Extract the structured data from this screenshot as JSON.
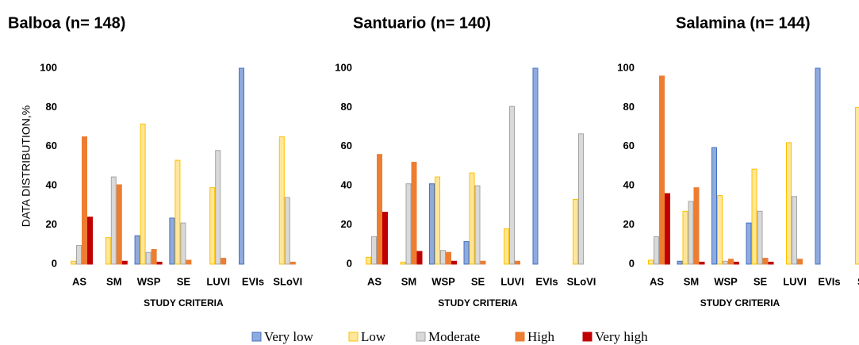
{
  "chart_data": [
    {
      "type": "bar",
      "title": "Balboa (n= 148)",
      "y_label": "DATA DISTRIBUTION,%",
      "x_label": "STUDY CRITERIA",
      "categories": [
        "AS",
        "SM",
        "WSP",
        "SE",
        "LUVI",
        "EVIs",
        "SLoVI"
      ],
      "ylim": [
        0,
        100
      ],
      "yticks": [
        0,
        20,
        40,
        60,
        80,
        100
      ],
      "series": [
        {
          "name": "Very low",
          "color": "#8faadc",
          "edgecolor": "#4472c4",
          "values": [
            0,
            0,
            14.5,
            23.5,
            0,
            100,
            0
          ]
        },
        {
          "name": "Low",
          "color": "#ffe699",
          "edgecolor": "#ffc000",
          "values": [
            1.5,
            13.5,
            71.5,
            53,
            39,
            0,
            65
          ]
        },
        {
          "name": "Moderate",
          "color": "#d9d9d9",
          "edgecolor": "#a5a5a5",
          "values": [
            9.5,
            44.5,
            6,
            21,
            58,
            0,
            34
          ]
        },
        {
          "name": "High",
          "color": "#ed7d31",
          "edgecolor": "#ed7d31",
          "values": [
            65,
            40.5,
            7.5,
            2,
            3,
            0,
            1
          ]
        },
        {
          "name": "Very high",
          "color": "#c00000",
          "edgecolor": "#c00000",
          "values": [
            24,
            1.5,
            1,
            0,
            0,
            0,
            0
          ]
        }
      ]
    },
    {
      "type": "bar",
      "title": "Santuario (n= 140)",
      "x_label": "STUDY CRITERIA",
      "categories": [
        "AS",
        "SM",
        "WSP",
        "SE",
        "LUVI",
        "EVIs",
        "SLoVI"
      ],
      "ylim": [
        0,
        100
      ],
      "yticks": [
        0,
        20,
        40,
        60,
        80,
        100
      ],
      "series": [
        {
          "name": "Very low",
          "color": "#8faadc",
          "edgecolor": "#4472c4",
          "values": [
            0,
            0,
            41,
            11.5,
            0,
            100,
            0
          ]
        },
        {
          "name": "Low",
          "color": "#ffe699",
          "edgecolor": "#ffc000",
          "values": [
            3.5,
            1,
            44.5,
            46.5,
            18,
            0,
            33
          ]
        },
        {
          "name": "Moderate",
          "color": "#d9d9d9",
          "edgecolor": "#a5a5a5",
          "values": [
            14,
            41,
            7,
            40,
            80.5,
            0,
            66.5
          ]
        },
        {
          "name": "High",
          "color": "#ed7d31",
          "edgecolor": "#ed7d31",
          "values": [
            56,
            52,
            6,
            1.5,
            1.5,
            0,
            0
          ]
        },
        {
          "name": "Very high",
          "color": "#c00000",
          "edgecolor": "#c00000",
          "values": [
            26.5,
            6.5,
            1.5,
            0,
            0,
            0,
            0
          ]
        }
      ]
    },
    {
      "type": "bar",
      "title": "Salamina (n= 144)",
      "x_label": "STUDY CRITERIA",
      "categories": [
        "AS",
        "SM",
        "WSP",
        "SE",
        "LUVI",
        "EVIs",
        "SL"
      ],
      "ylim": [
        0,
        100
      ],
      "yticks": [
        0,
        20,
        40,
        60,
        80,
        100
      ],
      "series": [
        {
          "name": "Very low",
          "color": "#8faadc",
          "edgecolor": "#4472c4",
          "values": [
            0,
            1.5,
            59.5,
            21,
            0,
            100,
            0
          ]
        },
        {
          "name": "Low",
          "color": "#ffe699",
          "edgecolor": "#ffc000",
          "values": [
            2,
            27,
            35,
            48.5,
            62,
            0,
            80
          ]
        },
        {
          "name": "Moderate",
          "color": "#d9d9d9",
          "edgecolor": "#a5a5a5",
          "values": [
            14,
            32,
            1.5,
            27,
            34.5,
            0,
            null
          ]
        },
        {
          "name": "High",
          "color": "#ed7d31",
          "edgecolor": "#ed7d31",
          "values": [
            96,
            39,
            2.5,
            3,
            2.5,
            0,
            null
          ]
        },
        {
          "name": "Very high",
          "color": "#c00000",
          "edgecolor": "#c00000",
          "values": [
            36,
            1,
            1,
            1,
            0,
            0,
            null
          ]
        }
      ]
    }
  ]
}
